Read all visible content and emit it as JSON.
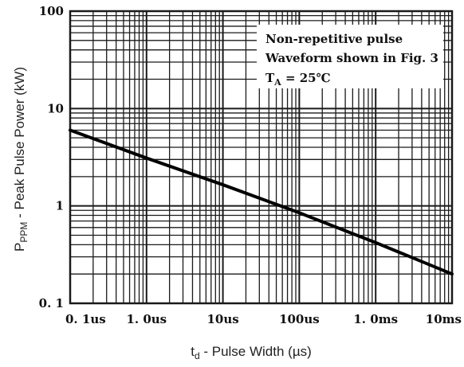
{
  "chart_data": {
    "type": "line",
    "title": "",
    "x_scale": "log",
    "y_scale": "log",
    "xlabel": {
      "main": "t",
      "subscript": "d",
      "rest": " - Pulse Width (µs)"
    },
    "ylabel": {
      "main": "P",
      "subscript": "PPM",
      "rest": " - Peak Pulse Power (kW)"
    },
    "xlim": [
      0.1,
      10000
    ],
    "ylim": [
      0.1,
      100
    ],
    "x_ticks": [
      {
        "value": 0.1,
        "label": "0. 1us"
      },
      {
        "value": 1,
        "label": "1. 0us"
      },
      {
        "value": 10,
        "label": "10us"
      },
      {
        "value": 100,
        "label": "100us"
      },
      {
        "value": 1000,
        "label": "1. 0ms"
      },
      {
        "value": 10000,
        "label": "10ms"
      }
    ],
    "y_ticks": [
      {
        "value": 0.1,
        "label": "0. 1"
      },
      {
        "value": 1,
        "label": "1"
      },
      {
        "value": 10,
        "label": "10"
      },
      {
        "value": 100,
        "label": "100"
      }
    ],
    "grid": true,
    "grid_minor": true,
    "annotation": {
      "line1": "Non-repetitive pulse",
      "line2": "Waveform shown in Fig. 3",
      "line3_main": "T",
      "line3_sub": "A",
      "line3_rest": " = 25℃",
      "position": "top-right"
    },
    "series": [
      {
        "x": [
          0.1,
          1,
          10,
          100,
          1000,
          10000
        ],
        "y": [
          6.0,
          3.1,
          1.65,
          0.85,
          0.42,
          0.2
        ]
      }
    ]
  },
  "colors": {
    "grid": "#1a1a1a",
    "curve": "#000000",
    "background": "#ffffff"
  }
}
